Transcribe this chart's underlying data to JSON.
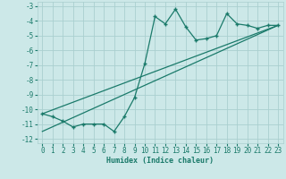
{
  "xlabel": "Humidex (Indice chaleur)",
  "bg_color": "#cce8e8",
  "grid_color": "#aacfcf",
  "line_color": "#1a7a6a",
  "x_data": [
    0,
    1,
    2,
    3,
    4,
    5,
    6,
    7,
    8,
    9,
    10,
    11,
    12,
    13,
    14,
    15,
    16,
    17,
    18,
    19,
    20,
    21,
    22,
    23
  ],
  "y_main": [
    -10.3,
    -10.5,
    -10.8,
    -11.2,
    -11.0,
    -11.0,
    -11.0,
    -11.5,
    -10.5,
    -9.2,
    -6.9,
    -3.7,
    -4.2,
    -3.2,
    -4.4,
    -5.3,
    -5.2,
    -5.0,
    -3.5,
    -4.2,
    -4.3,
    -4.5,
    -4.3,
    -4.3
  ],
  "y_line1_x": [
    0,
    23
  ],
  "y_line1_y": [
    -10.3,
    -4.3
  ],
  "y_line2_x": [
    0,
    23
  ],
  "y_line2_y": [
    -11.5,
    -4.3
  ],
  "ylim": [
    -12.3,
    -2.7
  ],
  "xlim": [
    -0.5,
    23.5
  ],
  "yticks": [
    -3,
    -4,
    -5,
    -6,
    -7,
    -8,
    -9,
    -10,
    -11,
    -12
  ],
  "xticks": [
    0,
    1,
    2,
    3,
    4,
    5,
    6,
    7,
    8,
    9,
    10,
    11,
    12,
    13,
    14,
    15,
    16,
    17,
    18,
    19,
    20,
    21,
    22,
    23
  ],
  "xlabel_fontsize": 6.0,
  "tick_fontsize": 5.5
}
